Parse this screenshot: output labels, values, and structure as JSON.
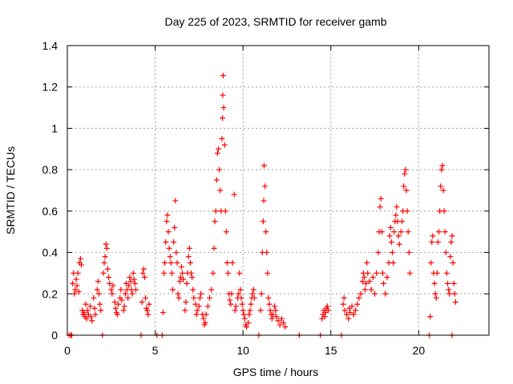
{
  "chart_data": {
    "type": "scatter",
    "title": "Day 225 of 2023, SRMTID for receiver gamb",
    "xlabel": "GPS time / hours",
    "ylabel": "SRMTID / TECUs",
    "xlim": [
      0,
      24
    ],
    "ylim": [
      0,
      1.4
    ],
    "xticks": [
      0,
      5,
      10,
      15,
      20
    ],
    "xtick_labels": [
      "0",
      "5",
      "10",
      "15",
      "20"
    ],
    "yticks": [
      0,
      0.2,
      0.4,
      0.6,
      0.8,
      1.0,
      1.2,
      1.4
    ],
    "ytick_labels": [
      "0",
      "0.2",
      "0.4",
      "0.6",
      "0.8",
      "1",
      "1.2",
      "1.4"
    ],
    "grid": true,
    "marker": "+",
    "marker_color": "#ff0000",
    "series": [
      {
        "name": "SRMTID",
        "points": [
          [
            0.1,
            0.0
          ],
          [
            0.2,
            0.0
          ],
          [
            0.25,
            0.0
          ],
          [
            0.3,
            0.25
          ],
          [
            0.35,
            0.3
          ],
          [
            0.4,
            0.2
          ],
          [
            0.45,
            0.22
          ],
          [
            0.5,
            0.27
          ],
          [
            0.55,
            0.24
          ],
          [
            0.6,
            0.3
          ],
          [
            0.65,
            0.21
          ],
          [
            0.7,
            0.35
          ],
          [
            0.75,
            0.37
          ],
          [
            0.8,
            0.34
          ],
          [
            0.85,
            0.12
          ],
          [
            0.9,
            0.1
          ],
          [
            0.95,
            0.11
          ],
          [
            1.0,
            0.09
          ],
          [
            1.05,
            0.15
          ],
          [
            1.1,
            0.08
          ],
          [
            1.15,
            0.12
          ],
          [
            1.2,
            0.1
          ],
          [
            1.3,
            0.14
          ],
          [
            1.35,
            0.09
          ],
          [
            1.4,
            0.07
          ],
          [
            1.5,
            0.18
          ],
          [
            1.55,
            0.13
          ],
          [
            1.6,
            0.1
          ],
          [
            1.7,
            0.22
          ],
          [
            1.75,
            0.26
          ],
          [
            1.8,
            0.2
          ],
          [
            1.85,
            0.15
          ],
          [
            1.9,
            0.12
          ],
          [
            2.0,
            0.0
          ],
          [
            2.05,
            0.3
          ],
          [
            2.1,
            0.35
          ],
          [
            2.15,
            0.38
          ],
          [
            2.2,
            0.44
          ],
          [
            2.25,
            0.42
          ],
          [
            2.3,
            0.32
          ],
          [
            2.35,
            0.28
          ],
          [
            2.4,
            0.25
          ],
          [
            2.5,
            0.22
          ],
          [
            2.55,
            0.2
          ],
          [
            2.6,
            0.24
          ],
          [
            2.7,
            0.16
          ],
          [
            2.75,
            0.13
          ],
          [
            2.8,
            0.11
          ],
          [
            2.85,
            0.1
          ],
          [
            2.9,
            0.15
          ],
          [
            3.0,
            0.18
          ],
          [
            3.05,
            0.22
          ],
          [
            3.1,
            0.17
          ],
          [
            3.2,
            0.12
          ],
          [
            3.25,
            0.14
          ],
          [
            3.3,
            0.2
          ],
          [
            3.35,
            0.25
          ],
          [
            3.4,
            0.22
          ],
          [
            3.45,
            0.18
          ],
          [
            3.5,
            0.24
          ],
          [
            3.55,
            0.28
          ],
          [
            3.6,
            0.26
          ],
          [
            3.65,
            0.22
          ],
          [
            3.7,
            0.2
          ],
          [
            3.75,
            0.3
          ],
          [
            3.8,
            0.27
          ],
          [
            3.85,
            0.25
          ],
          [
            3.9,
            0.22
          ],
          [
            4.2,
            0.0
          ],
          [
            4.25,
            0.16
          ],
          [
            4.3,
            0.3
          ],
          [
            4.35,
            0.32
          ],
          [
            4.4,
            0.28
          ],
          [
            4.45,
            0.18
          ],
          [
            4.5,
            0.13
          ],
          [
            4.55,
            0.12
          ],
          [
            4.6,
            0.1
          ],
          [
            4.65,
            0.15
          ],
          [
            5.1,
            0.0
          ],
          [
            5.4,
            0.0
          ],
          [
            5.45,
            0.11
          ],
          [
            5.5,
            0.3
          ],
          [
            5.55,
            0.35
          ],
          [
            5.6,
            0.45
          ],
          [
            5.65,
            0.55
          ],
          [
            5.7,
            0.58
          ],
          [
            5.75,
            0.5
          ],
          [
            5.8,
            0.42
          ],
          [
            5.85,
            0.38
          ],
          [
            5.9,
            0.35
          ],
          [
            5.95,
            0.3
          ],
          [
            6.0,
            0.22
          ],
          [
            6.05,
            0.45
          ],
          [
            6.1,
            0.52
          ],
          [
            6.15,
            0.65
          ],
          [
            6.2,
            0.4
          ],
          [
            6.25,
            0.35
          ],
          [
            6.3,
            0.2
          ],
          [
            6.35,
            0.18
          ],
          [
            6.4,
            0.26
          ],
          [
            6.45,
            0.28
          ],
          [
            6.5,
            0.33
          ],
          [
            6.55,
            0.3
          ],
          [
            6.6,
            0.27
          ],
          [
            6.7,
            0.12
          ],
          [
            6.75,
            0.16
          ],
          [
            6.8,
            0.25
          ],
          [
            6.85,
            0.3
          ],
          [
            6.9,
            0.38
          ],
          [
            6.95,
            0.42
          ],
          [
            7.0,
            0.35
          ],
          [
            7.05,
            0.3
          ],
          [
            7.1,
            0.28
          ],
          [
            7.15,
            0.22
          ],
          [
            7.2,
            0.18
          ],
          [
            7.3,
            0.15
          ],
          [
            7.35,
            0.1
          ],
          [
            7.4,
            0.12
          ],
          [
            7.5,
            0.14
          ],
          [
            7.55,
            0.18
          ],
          [
            7.6,
            0.2
          ],
          [
            7.7,
            0.1
          ],
          [
            7.75,
            0.08
          ],
          [
            7.8,
            0.05
          ],
          [
            7.85,
            0.06
          ],
          [
            7.9,
            0.1
          ],
          [
            8.0,
            0.14
          ],
          [
            8.1,
            0.18
          ],
          [
            8.2,
            0.22
          ],
          [
            8.3,
            0.3
          ],
          [
            8.35,
            0.42
          ],
          [
            8.4,
            0.55
          ],
          [
            8.45,
            0.6
          ],
          [
            8.5,
            0.75
          ],
          [
            8.55,
            0.88
          ],
          [
            8.6,
            0.9
          ],
          [
            8.65,
            0.8
          ],
          [
            8.7,
            0.7
          ],
          [
            8.75,
            0.6
          ],
          [
            8.8,
            0.95
          ],
          [
            8.83,
            1.05
          ],
          [
            8.85,
            1.16
          ],
          [
            8.87,
            1.255
          ],
          [
            8.9,
            1.1
          ],
          [
            8.95,
            0.92
          ],
          [
            9.0,
            0.6
          ],
          [
            9.05,
            0.5
          ],
          [
            9.1,
            0.35
          ],
          [
            9.15,
            0.3
          ],
          [
            9.2,
            0.2
          ],
          [
            9.25,
            0.17
          ],
          [
            9.3,
            0.15
          ],
          [
            9.35,
            0.2
          ],
          [
            9.4,
            0.35
          ],
          [
            9.5,
            0.68
          ],
          [
            9.55,
            0.12
          ],
          [
            9.6,
            0.14
          ],
          [
            9.7,
            0.18
          ],
          [
            9.75,
            0.2
          ],
          [
            9.8,
            0.3
          ],
          [
            9.85,
            0.22
          ],
          [
            9.9,
            0.18
          ],
          [
            9.95,
            0.15
          ],
          [
            10.0,
            0.12
          ],
          [
            10.05,
            0.1
          ],
          [
            10.1,
            0.08
          ],
          [
            10.15,
            0.05
          ],
          [
            10.2,
            0.04
          ],
          [
            10.3,
            0.06
          ],
          [
            10.35,
            0.1
          ],
          [
            10.4,
            0.12
          ],
          [
            10.45,
            0.15
          ],
          [
            10.5,
            0.18
          ],
          [
            10.55,
            0.2
          ],
          [
            10.6,
            0.22
          ],
          [
            10.65,
            0.18
          ],
          [
            10.9,
            0.0
          ],
          [
            11.0,
            0.12
          ],
          [
            11.05,
            0.2
          ],
          [
            11.1,
            0.4
          ],
          [
            11.15,
            0.55
          ],
          [
            11.18,
            0.65
          ],
          [
            11.2,
            0.82
          ],
          [
            11.25,
            0.72
          ],
          [
            11.3,
            0.5
          ],
          [
            11.35,
            0.4
          ],
          [
            11.4,
            0.3
          ],
          [
            11.45,
            0.18
          ],
          [
            11.5,
            0.15
          ],
          [
            11.55,
            0.12
          ],
          [
            11.6,
            0.1
          ],
          [
            11.65,
            0.08
          ],
          [
            11.7,
            0.1
          ],
          [
            11.8,
            0.14
          ],
          [
            11.85,
            0.12
          ],
          [
            11.9,
            0.09
          ],
          [
            12.0,
            0.07
          ],
          [
            12.1,
            0.05
          ],
          [
            12.2,
            0.08
          ],
          [
            12.3,
            0.06
          ],
          [
            12.4,
            0.04
          ],
          [
            13.2,
            0.0
          ],
          [
            14.4,
            0.0
          ],
          [
            14.5,
            0.08
          ],
          [
            14.55,
            0.1
          ],
          [
            14.6,
            0.12
          ],
          [
            14.65,
            0.09
          ],
          [
            14.7,
            0.11
          ],
          [
            14.75,
            0.13
          ],
          [
            14.8,
            0.14
          ],
          [
            14.85,
            0.12
          ],
          [
            15.6,
            0.0
          ],
          [
            15.7,
            0.15
          ],
          [
            15.75,
            0.18
          ],
          [
            15.8,
            0.12
          ],
          [
            15.9,
            0.1
          ],
          [
            16.0,
            0.08
          ],
          [
            16.05,
            0.13
          ],
          [
            16.1,
            0.11
          ],
          [
            16.2,
            0.14
          ],
          [
            16.3,
            0.1
          ],
          [
            16.4,
            0.12
          ],
          [
            16.5,
            0.15
          ],
          [
            16.6,
            0.18
          ],
          [
            16.7,
            0.2
          ],
          [
            16.8,
            0.26
          ],
          [
            16.85,
            0.3
          ],
          [
            16.9,
            0.28
          ],
          [
            16.95,
            0.22
          ],
          [
            17.0,
            0.25
          ],
          [
            17.05,
            0.35
          ],
          [
            17.1,
            0.3
          ],
          [
            17.2,
            0.26
          ],
          [
            17.3,
            0.22
          ],
          [
            17.4,
            0.28
          ],
          [
            17.5,
            0.2
          ],
          [
            17.6,
            0.3
          ],
          [
            17.7,
            0.4
          ],
          [
            17.75,
            0.5
          ],
          [
            17.8,
            0.62
          ],
          [
            17.85,
            0.66
          ],
          [
            17.9,
            0.5
          ],
          [
            17.95,
            0.3
          ],
          [
            18.0,
            0.25
          ],
          [
            18.1,
            0.2
          ],
          [
            18.2,
            0.28
          ],
          [
            18.3,
            0.35
          ],
          [
            18.35,
            0.48
          ],
          [
            18.4,
            0.52
          ],
          [
            18.45,
            0.45
          ],
          [
            18.5,
            0.4
          ],
          [
            18.55,
            0.35
          ],
          [
            18.6,
            0.5
          ],
          [
            18.65,
            0.55
          ],
          [
            18.7,
            0.58
          ],
          [
            18.75,
            0.62
          ],
          [
            18.8,
            0.55
          ],
          [
            18.85,
            0.48
          ],
          [
            18.9,
            0.44
          ],
          [
            19.0,
            0.5
          ],
          [
            19.05,
            0.55
          ],
          [
            19.1,
            0.6
          ],
          [
            19.15,
            0.72
          ],
          [
            19.2,
            0.78
          ],
          [
            19.25,
            0.8
          ],
          [
            19.3,
            0.7
          ],
          [
            19.35,
            0.6
          ],
          [
            19.4,
            0.5
          ],
          [
            19.45,
            0.4
          ],
          [
            19.5,
            0.3
          ],
          [
            20.6,
            0.0
          ],
          [
            20.65,
            0.09
          ],
          [
            20.7,
            0.35
          ],
          [
            20.75,
            0.45
          ],
          [
            20.8,
            0.48
          ],
          [
            20.85,
            0.3
          ],
          [
            20.9,
            0.25
          ],
          [
            20.95,
            0.2
          ],
          [
            21.0,
            0.18
          ],
          [
            21.05,
            0.3
          ],
          [
            21.1,
            0.45
          ],
          [
            21.15,
            0.5
          ],
          [
            21.2,
            0.6
          ],
          [
            21.25,
            0.72
          ],
          [
            21.3,
            0.8
          ],
          [
            21.35,
            0.82
          ],
          [
            21.4,
            0.7
          ],
          [
            21.45,
            0.6
          ],
          [
            21.5,
            0.5
          ],
          [
            21.55,
            0.4
          ],
          [
            21.6,
            0.3
          ],
          [
            21.65,
            0.25
          ],
          [
            21.7,
            0.22
          ],
          [
            21.75,
            0.2
          ],
          [
            21.8,
            0.38
          ],
          [
            21.85,
            0.45
          ],
          [
            21.9,
            0.48
          ],
          [
            21.95,
            0.35
          ],
          [
            22.0,
            0.25
          ],
          [
            22.05,
            0.2
          ],
          [
            22.1,
            0.16
          ],
          [
            21.9,
            0.0
          ]
        ]
      }
    ]
  }
}
